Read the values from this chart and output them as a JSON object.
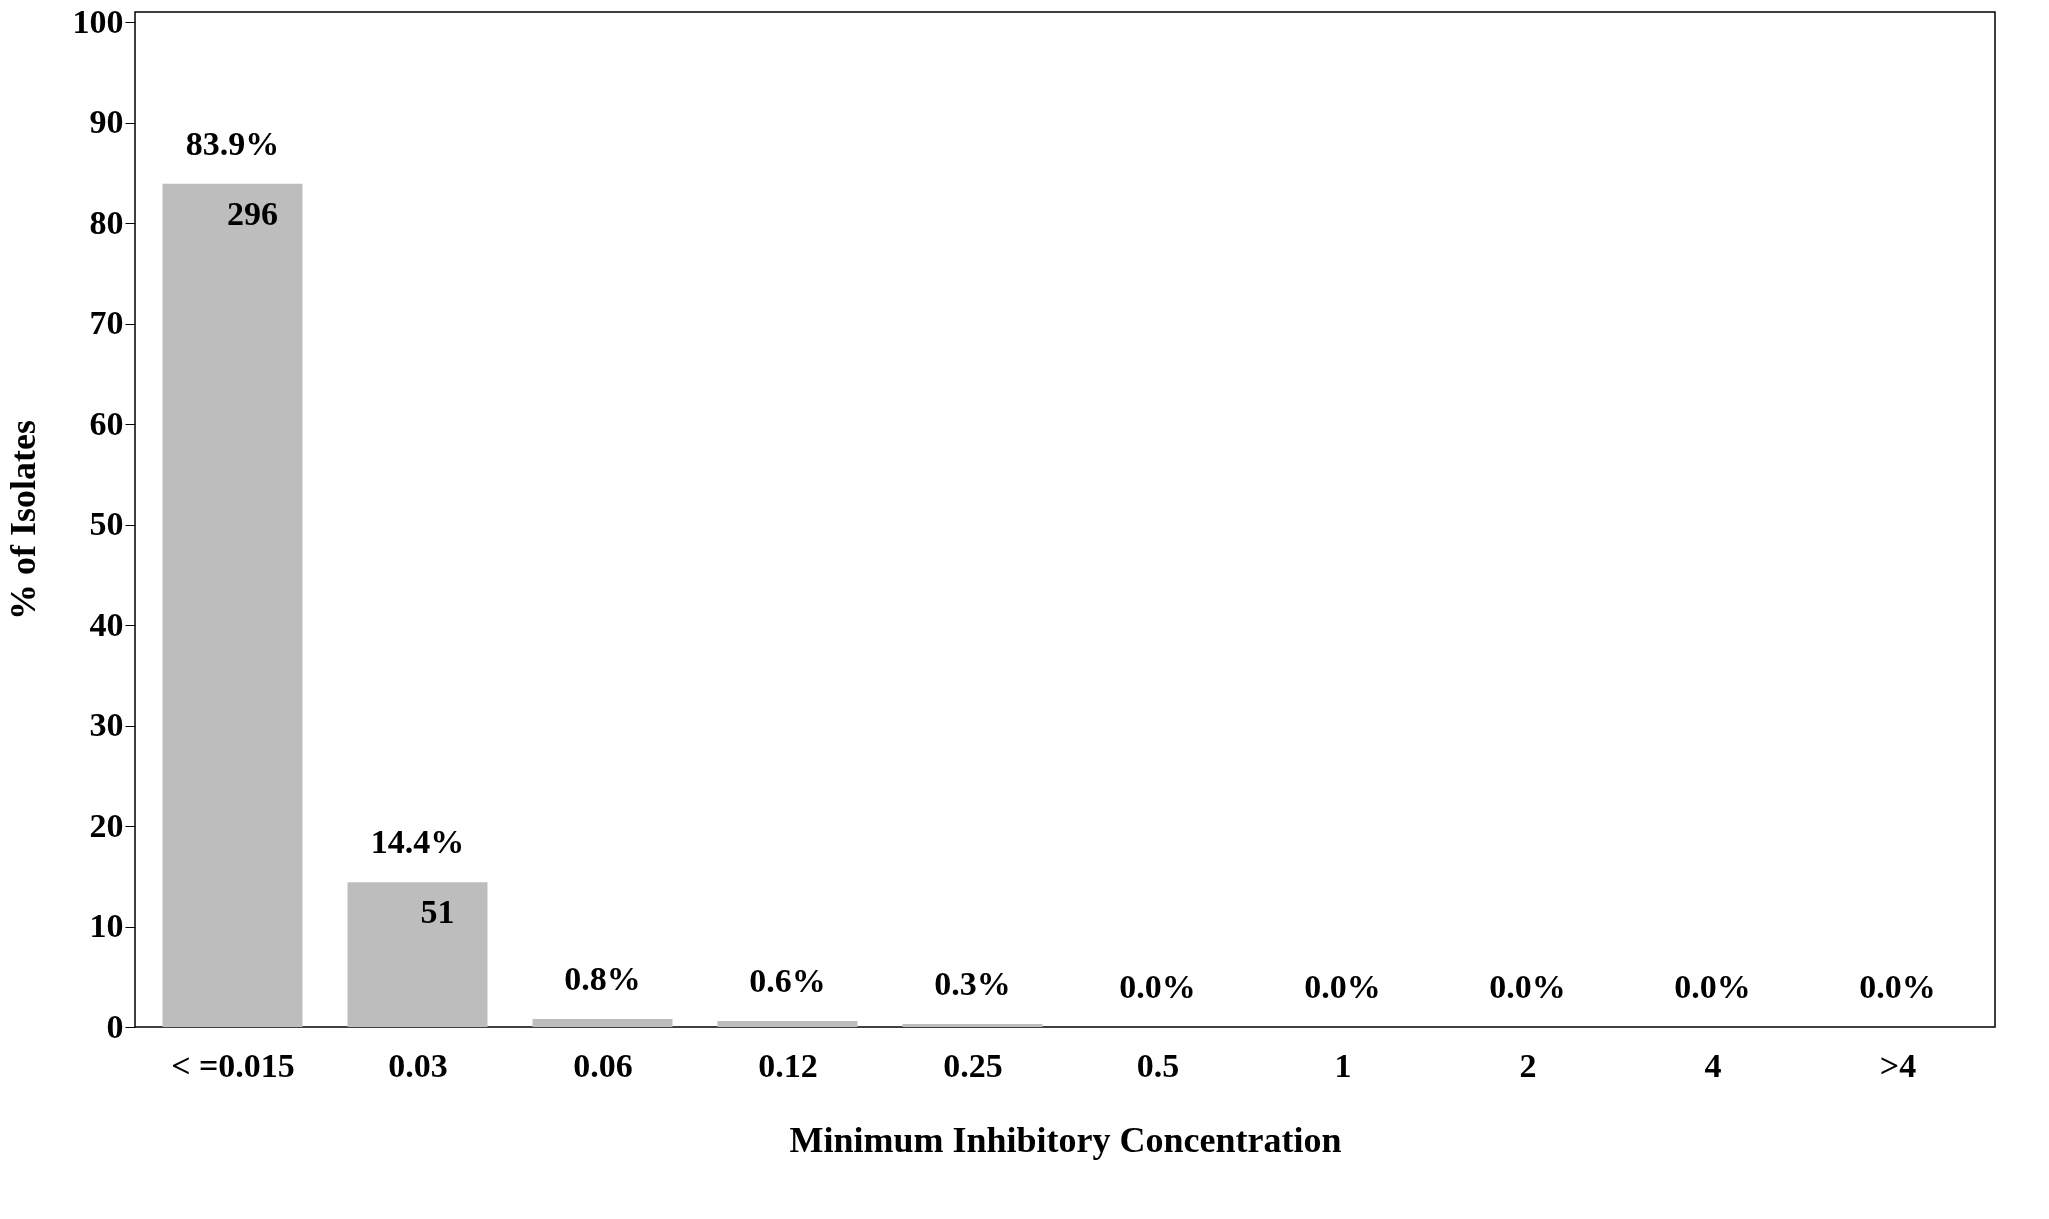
{
  "chart_data": {
    "type": "bar",
    "xlabel": "Minimum Inhibitory Concentration",
    "ylabel": "% of Isolates",
    "categories": [
      "< =0.015",
      "0.03",
      "0.06",
      "0.12",
      "0.25",
      "0.5",
      "1",
      "2",
      "4",
      ">4"
    ],
    "values": [
      83.9,
      14.4,
      0.8,
      0.6,
      0.3,
      0,
      0,
      0,
      0,
      0
    ],
    "value_labels": [
      "83.9%",
      "14.4%",
      "0.8%",
      "0.6%",
      "0.3%",
      "0.0%",
      "0.0%",
      "0.0%",
      "0.0%",
      "0.0%"
    ],
    "color": "#bdbdbd",
    "ylim": [
      0,
      101
    ],
    "yticks": [
      0,
      10,
      20,
      30,
      40,
      50,
      60,
      70,
      80,
      90,
      100
    ],
    "annotations": [
      "296",
      "51"
    ],
    "grid": false
  }
}
